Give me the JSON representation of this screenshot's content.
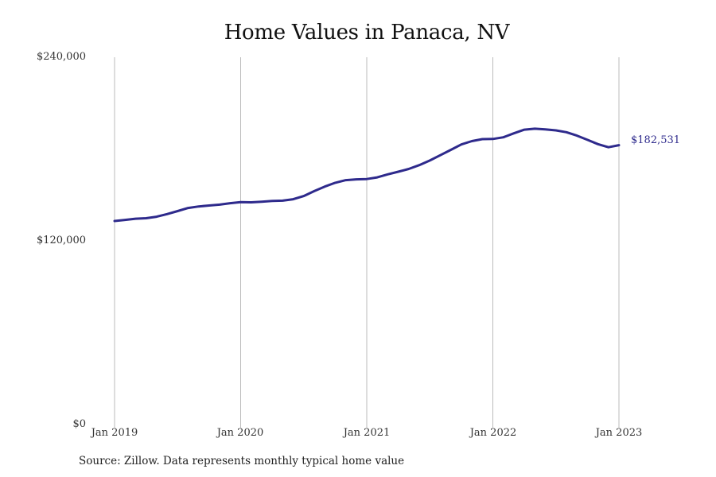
{
  "title": "Home Values in Panaca, NV",
  "source": "Source: Zillow. Data represents monthly typical home value",
  "end_label": "$182,531",
  "colors": {
    "line": "#2e2a8c",
    "grid": "#bbbbbb",
    "text": "#222222"
  },
  "y_axis": {
    "ticks": [
      "$240,000",
      "$120,000",
      "$0"
    ]
  },
  "x_axis": {
    "ticks": [
      "Jan 2019",
      "Jan 2020",
      "Jan 2021",
      "Jan 2022",
      "Jan 2023"
    ]
  },
  "chart_data": {
    "type": "line",
    "title": "Home Values in Panaca, NV",
    "xlabel": "",
    "ylabel": "",
    "ylim": [
      0,
      240000
    ],
    "y_ticks": [
      0,
      120000,
      240000
    ],
    "x_ticks": [
      "Jan 2019",
      "Jan 2020",
      "Jan 2021",
      "Jan 2022",
      "Jan 2023"
    ],
    "grid": "vertical lines at x ticks",
    "legend": "none",
    "series": [
      {
        "name": "Typical home value",
        "x": [
          "2019-01",
          "2019-02",
          "2019-03",
          "2019-04",
          "2019-05",
          "2019-06",
          "2019-07",
          "2019-08",
          "2019-09",
          "2019-10",
          "2019-11",
          "2019-12",
          "2020-01",
          "2020-02",
          "2020-03",
          "2020-04",
          "2020-05",
          "2020-06",
          "2020-07",
          "2020-08",
          "2020-09",
          "2020-10",
          "2020-11",
          "2020-12",
          "2021-01",
          "2021-02",
          "2021-03",
          "2021-04",
          "2021-05",
          "2021-06",
          "2021-07",
          "2021-08",
          "2021-09",
          "2021-10",
          "2021-11",
          "2021-12",
          "2022-01",
          "2022-02",
          "2022-03",
          "2022-04",
          "2022-05",
          "2022-06",
          "2022-07",
          "2022-08",
          "2022-09",
          "2022-10",
          "2022-11",
          "2022-12",
          "2023-01"
        ],
        "values": [
          133000,
          133700,
          134500,
          134800,
          135800,
          137500,
          139500,
          141500,
          142500,
          143100,
          143700,
          144600,
          145300,
          145200,
          145600,
          146100,
          146300,
          147200,
          149300,
          152500,
          155500,
          158000,
          159700,
          160200,
          160400,
          161500,
          163500,
          165200,
          167000,
          169500,
          172500,
          176000,
          179500,
          183000,
          185200,
          186500,
          186600,
          187700,
          190300,
          192700,
          193300,
          192900,
          192200,
          191000,
          188800,
          186000,
          183200,
          181200,
          182531
        ]
      }
    ],
    "end_annotation": "$182,531"
  }
}
